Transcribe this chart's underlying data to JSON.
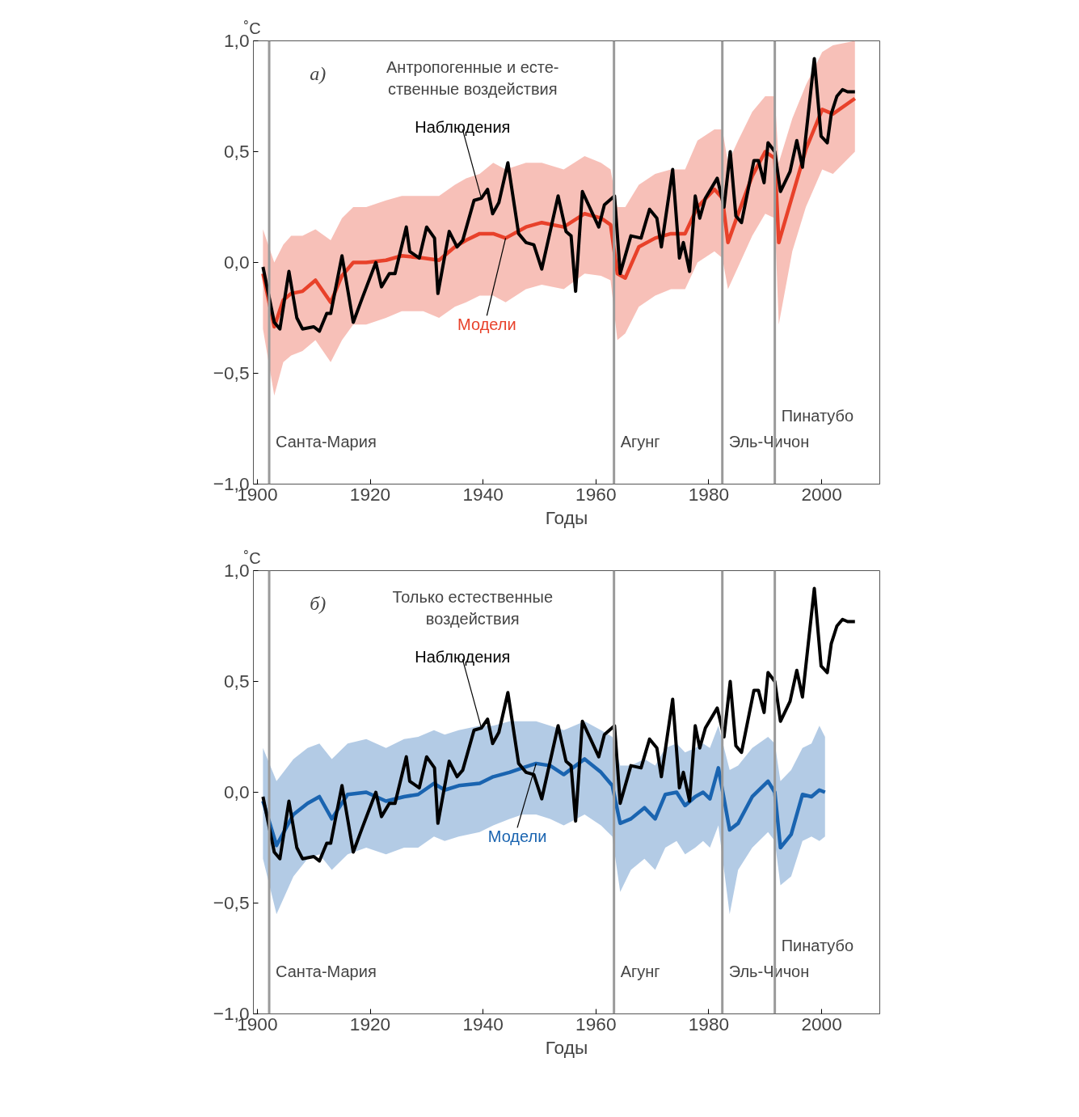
{
  "chart_data": [
    {
      "type": "line",
      "title": "Антропогенные и есте-\nственные воздействия",
      "xlabel": "Годы",
      "ylabel": "˚C",
      "annotations": [
        "а)"
      ],
      "xlim": [
        1899.3,
        2010.3
      ],
      "xticks": [
        1900,
        1920,
        1940,
        1960,
        1980,
        2000
      ],
      "ylim": [
        -1,
        1
      ],
      "yticks": [
        {
          "value": -1,
          "label": "−1,0"
        },
        {
          "value": -0.5,
          "label": "−0,5"
        },
        {
          "value": 0,
          "label": "0,0"
        },
        {
          "value": 0.5,
          "label": "0,5"
        },
        {
          "value": 1,
          "label": "1,0"
        }
      ],
      "grid": false,
      "line_style": "solid",
      "marker": "none",
      "ref_lines": [
        {
          "axis": "x",
          "value": 1902.1,
          "label": "Санта-Мария",
          "color": "#9a9a9a"
        },
        {
          "axis": "x",
          "value": 1963.2,
          "label": "Агунг",
          "color": "#9a9a9a"
        },
        {
          "axis": "x",
          "value": 1982.4,
          "label": "Эль-Чичон",
          "color": "#9a9a9a"
        },
        {
          "axis": "x",
          "value": 1991.7,
          "label": "Пинатубо",
          "color": "#9a9a9a"
        }
      ],
      "series": [
        {
          "name": "Модели",
          "color": "#e8412a",
          "x": [
            1901,
            1903,
            1904.6,
            1906,
            1908,
            1910.3,
            1913,
            1915,
            1917,
            1919.3,
            1922.8,
            1925.6,
            1929.4,
            1932.2,
            1935,
            1937,
            1939.4,
            1941.8,
            1944,
            1947.6,
            1950.4,
            1954.3,
            1958,
            1960.9,
            1962.6,
            1963.8,
            1965.2,
            1967.6,
            1970.5,
            1973.3,
            1975.8,
            1978,
            1981,
            1982.4,
            1983.4,
            1985.2,
            1987.7,
            1990,
            1991.7,
            1992.4,
            1994.8,
            1997.2,
            2000.1,
            2002,
            2005.9
          ],
          "values": [
            -0.05,
            -0.29,
            -0.17,
            -0.14,
            -0.13,
            -0.08,
            -0.18,
            -0.06,
            0.0,
            0.0,
            0.01,
            0.03,
            0.02,
            0.01,
            0.07,
            0.1,
            0.13,
            0.13,
            0.11,
            0.16,
            0.18,
            0.16,
            0.22,
            0.2,
            0.17,
            -0.05,
            -0.07,
            0.07,
            0.11,
            0.13,
            0.13,
            0.25,
            0.33,
            0.29,
            0.09,
            0.22,
            0.39,
            0.5,
            0.47,
            0.09,
            0.3,
            0.51,
            0.69,
            0.67,
            0.74
          ],
          "upper": [
            0.15,
            0.0,
            0.08,
            0.12,
            0.12,
            0.15,
            0.1,
            0.2,
            0.25,
            0.25,
            0.28,
            0.3,
            0.3,
            0.3,
            0.35,
            0.38,
            0.4,
            0.45,
            0.42,
            0.45,
            0.45,
            0.42,
            0.48,
            0.45,
            0.42,
            0.25,
            0.25,
            0.35,
            0.4,
            0.42,
            0.42,
            0.55,
            0.6,
            0.6,
            0.45,
            0.55,
            0.68,
            0.75,
            0.75,
            0.45,
            0.65,
            0.8,
            0.95,
            0.98,
            1.0
          ],
          "lower": [
            -0.3,
            -0.6,
            -0.45,
            -0.42,
            -0.4,
            -0.35,
            -0.45,
            -0.35,
            -0.28,
            -0.28,
            -0.25,
            -0.22,
            -0.22,
            -0.25,
            -0.2,
            -0.18,
            -0.15,
            -0.15,
            -0.18,
            -0.12,
            -0.1,
            -0.12,
            -0.05,
            -0.06,
            -0.08,
            -0.35,
            -0.32,
            -0.2,
            -0.15,
            -0.12,
            -0.12,
            0.0,
            0.05,
            0.02,
            -0.12,
            -0.02,
            0.12,
            0.22,
            0.2,
            -0.28,
            0.05,
            0.25,
            0.42,
            0.4,
            0.5
          ]
        },
        {
          "name": "Наблюдения",
          "color": "#000000",
          "x": [
            1901,
            1903,
            1904,
            1905.6,
            1907,
            1908,
            1910,
            1911,
            1912.3,
            1913,
            1915,
            1917,
            1918.6,
            1921,
            1922,
            1923.4,
            1924.4,
            1926.4,
            1927,
            1928.7,
            1930,
            1931.4,
            1932,
            1934,
            1935.4,
            1936.4,
            1938.4,
            1939.7,
            1940.8,
            1941.7,
            1942.8,
            1944.4,
            1946.3,
            1947.6,
            1949,
            1950.4,
            1953.3,
            1954.7,
            1955.6,
            1956.4,
            1957.6,
            1960.5,
            1961.5,
            1963.3,
            1964.3,
            1966.2,
            1968,
            1969.5,
            1970.8,
            1971.6,
            1973.6,
            1974.8,
            1975.5,
            1976.6,
            1977.6,
            1978.4,
            1979.4,
            1981.5,
            1982.7,
            1983.8,
            1984.8,
            1985.8,
            1988,
            1988.8,
            1989.8,
            1990.5,
            1991.7,
            1992.7,
            1994.4,
            1995.6,
            1996.6,
            1998.7,
            1999.9,
            2001,
            2001.7,
            2002.7,
            2003.7,
            2004.6,
            2005.9
          ],
          "values": [
            -0.02,
            -0.27,
            -0.3,
            -0.04,
            -0.25,
            -0.3,
            -0.29,
            -0.31,
            -0.23,
            -0.23,
            0.03,
            -0.27,
            -0.16,
            0.0,
            -0.11,
            -0.05,
            -0.05,
            0.16,
            0.05,
            0.02,
            0.16,
            0.11,
            -0.14,
            0.14,
            0.07,
            0.1,
            0.28,
            0.29,
            0.33,
            0.22,
            0.27,
            0.45,
            0.13,
            0.09,
            0.08,
            -0.03,
            0.3,
            0.14,
            0.12,
            -0.13,
            0.32,
            0.16,
            0.26,
            0.3,
            -0.05,
            0.12,
            0.11,
            0.24,
            0.2,
            0.07,
            0.42,
            0.02,
            0.09,
            -0.04,
            0.3,
            0.2,
            0.29,
            0.38,
            0.25,
            0.5,
            0.21,
            0.18,
            0.46,
            0.46,
            0.36,
            0.54,
            0.5,
            0.32,
            0.41,
            0.55,
            0.43,
            0.92,
            0.57,
            0.54,
            0.67,
            0.75,
            0.78,
            0.77,
            0.77
          ]
        }
      ]
    },
    {
      "type": "line",
      "title": "Только естественные\nвоздействия",
      "xlabel": "Годы",
      "ylabel": "˚C",
      "annotations": [
        "б)"
      ],
      "xlim": [
        1899.3,
        2010.3
      ],
      "xticks": [
        1900,
        1920,
        1940,
        1960,
        1980,
        2000
      ],
      "ylim": [
        -1,
        1
      ],
      "yticks": [
        {
          "value": -1,
          "label": "−1,0"
        },
        {
          "value": -0.5,
          "label": "−0,5"
        },
        {
          "value": 0,
          "label": "0,0"
        },
        {
          "value": 0.5,
          "label": "0,5"
        },
        {
          "value": 1,
          "label": "1,0"
        }
      ],
      "grid": false,
      "line_style": "solid",
      "marker": "none",
      "ref_lines": [
        {
          "axis": "x",
          "value": 1902.1,
          "label": "Санта-Мария",
          "color": "#9a9a9a"
        },
        {
          "axis": "x",
          "value": 1963.2,
          "label": "Агунг",
          "color": "#9a9a9a"
        },
        {
          "axis": "x",
          "value": 1982.4,
          "label": "Эль-Чичон",
          "color": "#9a9a9a"
        },
        {
          "axis": "x",
          "value": 1991.7,
          "label": "Пинатубо",
          "color": "#9a9a9a"
        }
      ],
      "series": [
        {
          "name": "Модели",
          "color": "#1a64b0",
          "x": [
            1901,
            1903.4,
            1906.4,
            1908.9,
            1911,
            1913.2,
            1916,
            1919.3,
            1922.8,
            1926,
            1928.5,
            1931.3,
            1933.2,
            1935.7,
            1939.4,
            1941.8,
            1944.7,
            1947,
            1949.4,
            1951.9,
            1954.3,
            1958,
            1960.9,
            1962.9,
            1964.3,
            1966.2,
            1968.6,
            1970.5,
            1972.3,
            1974.3,
            1975.8,
            1977.6,
            1979,
            1980.2,
            1981.7,
            1983.7,
            1985.2,
            1987.7,
            1990.5,
            1991.7,
            1992.7,
            1994.6,
            1996.6,
            1998.2,
            1999.6,
            2000.6
          ],
          "values": [
            -0.04,
            -0.24,
            -0.1,
            -0.05,
            -0.02,
            -0.12,
            -0.01,
            0.0,
            -0.04,
            -0.02,
            -0.01,
            0.04,
            0.01,
            0.03,
            0.04,
            0.07,
            0.09,
            0.11,
            0.13,
            0.12,
            0.08,
            0.15,
            0.09,
            0.03,
            -0.14,
            -0.12,
            -0.07,
            -0.12,
            -0.01,
            0.0,
            -0.06,
            -0.02,
            0.0,
            -0.03,
            0.11,
            -0.17,
            -0.14,
            -0.02,
            0.05,
            0.0,
            -0.25,
            -0.19,
            -0.01,
            -0.02,
            0.01,
            0.0
          ],
          "upper": [
            0.2,
            0.05,
            0.15,
            0.2,
            0.22,
            0.15,
            0.22,
            0.24,
            0.2,
            0.24,
            0.25,
            0.28,
            0.26,
            0.28,
            0.3,
            0.3,
            0.32,
            0.32,
            0.32,
            0.3,
            0.28,
            0.32,
            0.28,
            0.25,
            0.12,
            0.12,
            0.15,
            0.12,
            0.2,
            0.22,
            0.18,
            0.2,
            0.22,
            0.2,
            0.3,
            0.1,
            0.12,
            0.2,
            0.25,
            0.22,
            0.05,
            0.1,
            0.2,
            0.22,
            0.3,
            0.25
          ],
          "lower": [
            -0.3,
            -0.55,
            -0.38,
            -0.3,
            -0.28,
            -0.35,
            -0.28,
            -0.25,
            -0.28,
            -0.25,
            -0.25,
            -0.2,
            -0.22,
            -0.2,
            -0.18,
            -0.15,
            -0.12,
            -0.1,
            -0.1,
            -0.12,
            -0.15,
            -0.1,
            -0.15,
            -0.2,
            -0.45,
            -0.35,
            -0.3,
            -0.35,
            -0.25,
            -0.22,
            -0.28,
            -0.25,
            -0.22,
            -0.25,
            -0.15,
            -0.55,
            -0.35,
            -0.25,
            -0.18,
            -0.22,
            -0.42,
            -0.38,
            -0.22,
            -0.2,
            -0.22,
            -0.2
          ]
        },
        {
          "name": "Наблюдения",
          "color": "#000000",
          "x": [
            1901,
            1903,
            1904,
            1905.6,
            1907,
            1908,
            1910,
            1911,
            1912.3,
            1913,
            1915,
            1917,
            1918.6,
            1921,
            1922,
            1923.4,
            1924.4,
            1926.4,
            1927,
            1928.7,
            1930,
            1931.4,
            1932,
            1934,
            1935.4,
            1936.4,
            1938.4,
            1939.7,
            1940.8,
            1941.7,
            1942.8,
            1944.4,
            1946.3,
            1947.6,
            1949,
            1950.4,
            1953.3,
            1954.7,
            1955.6,
            1956.4,
            1957.6,
            1960.5,
            1961.5,
            1963.3,
            1964.3,
            1966.2,
            1968,
            1969.5,
            1970.8,
            1971.6,
            1973.6,
            1974.8,
            1975.5,
            1976.6,
            1977.6,
            1978.4,
            1979.4,
            1981.5,
            1982.7,
            1983.8,
            1984.8,
            1985.8,
            1988,
            1988.8,
            1989.8,
            1990.5,
            1991.7,
            1992.7,
            1994.4,
            1995.6,
            1996.6,
            1998.7,
            1999.9,
            2001,
            2001.7,
            2002.7,
            2003.7,
            2004.6,
            2005.9
          ],
          "values": [
            -0.02,
            -0.27,
            -0.3,
            -0.04,
            -0.25,
            -0.3,
            -0.29,
            -0.31,
            -0.23,
            -0.23,
            0.03,
            -0.27,
            -0.16,
            0.0,
            -0.11,
            -0.05,
            -0.05,
            0.16,
            0.05,
            0.02,
            0.16,
            0.11,
            -0.14,
            0.14,
            0.07,
            0.1,
            0.28,
            0.29,
            0.33,
            0.22,
            0.27,
            0.45,
            0.13,
            0.09,
            0.08,
            -0.03,
            0.3,
            0.14,
            0.12,
            -0.13,
            0.32,
            0.16,
            0.26,
            0.3,
            -0.05,
            0.12,
            0.11,
            0.24,
            0.2,
            0.07,
            0.42,
            0.02,
            0.09,
            -0.04,
            0.3,
            0.2,
            0.29,
            0.38,
            0.25,
            0.5,
            0.21,
            0.18,
            0.46,
            0.46,
            0.36,
            0.54,
            0.5,
            0.32,
            0.41,
            0.55,
            0.43,
            0.92,
            0.57,
            0.54,
            0.67,
            0.75,
            0.78,
            0.77,
            0.77
          ]
        }
      ]
    }
  ]
}
